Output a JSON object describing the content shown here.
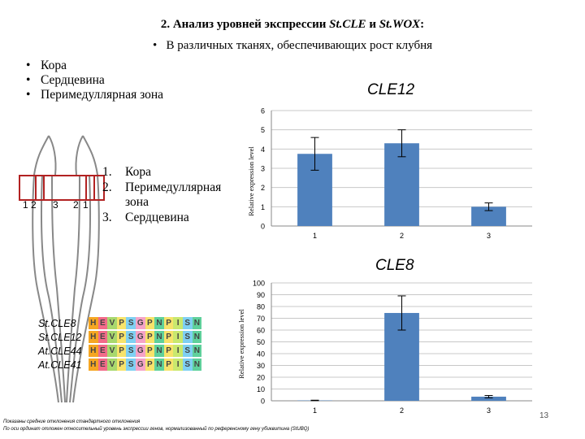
{
  "slide": {
    "title_prefix": "2.  Анализ уровней  экспрессии ",
    "title_gene1": "St.CLE",
    "title_mid": " и ",
    "title_gene2": "St.WOX",
    "title_suffix": ":",
    "subtitle": "В различных тканях, обеспечивающих рост клубня",
    "tissue_list": [
      "Кора",
      "Сердцевина",
      "Перимедуллярная зона"
    ],
    "numbered_list": [
      {
        "num": "1.",
        "text": "Кора"
      },
      {
        "num": "2.",
        "text": "Перимедуллярная"
      },
      {
        "num": "",
        "text": "зона"
      },
      {
        "num": "3.",
        "text": "Сердцевина"
      }
    ],
    "diagram_labels": [
      "1",
      "2",
      "3",
      "2",
      "1"
    ],
    "page_number": "13",
    "footnotes": [
      "Показаны средние отклонения стандартного отклонения",
      "По оси ординат отложен относительный уровень экспрессии генов, нормализованный по референсному гену убиквитина (StUBQ)"
    ]
  },
  "sequences": {
    "names": [
      "St.CLE8",
      "St.CLE12",
      "At.CLE44",
      "At.CLE41"
    ],
    "residues": [
      "H",
      "E",
      "V",
      "P",
      "S",
      "G",
      "P",
      "N",
      "P",
      "I",
      "S",
      "N"
    ],
    "rows": [
      [
        "H",
        "E",
        "V",
        "P",
        "S",
        "G",
        "P",
        "N",
        "P",
        "I",
        "S",
        "N"
      ],
      [
        "H",
        "E",
        "V",
        "P",
        "S",
        "G",
        "P",
        "N",
        "P",
        "I",
        "S",
        "N"
      ],
      [
        "H",
        "E",
        "V",
        "P",
        "S",
        "G",
        "P",
        "N",
        "P",
        "I",
        "S",
        "N"
      ],
      [
        "H",
        "E",
        "V",
        "P",
        "S",
        "G",
        "P",
        "N",
        "P",
        "I",
        "S",
        "N"
      ]
    ],
    "colors": [
      "#f5a623",
      "#f26b8a",
      "#a8d86e",
      "#f7e36b",
      "#7fd0f2",
      "#f5a3c7",
      "#f7e36b",
      "#5fd09b",
      "#f7e36b",
      "#c9e86e",
      "#7fd0f2",
      "#5fd09b"
    ]
  },
  "chart_data": [
    {
      "type": "bar",
      "title": "CLE12",
      "categories": [
        "1",
        "2",
        "3"
      ],
      "values": [
        3.75,
        4.3,
        1.0
      ],
      "errors": [
        0.85,
        0.7,
        0.2
      ],
      "ylim": [
        0,
        6
      ],
      "yticks": [
        "0",
        "1",
        "2",
        "3",
        "4",
        "5",
        "6"
      ],
      "ylabel": "Relative expression level",
      "xlabel": "",
      "bar_color": "#4f81bd",
      "grid": true
    },
    {
      "type": "bar",
      "title": "CLE8",
      "categories": [
        "1",
        "2",
        "3"
      ],
      "values": [
        0.3,
        74.5,
        3.5
      ],
      "errors": [
        0.2,
        14.5,
        1.0
      ],
      "ylim": [
        0,
        100
      ],
      "yticks": [
        "0",
        "10",
        "20",
        "30",
        "40",
        "50",
        "60",
        "70",
        "80",
        "90",
        "100"
      ],
      "ylabel": "Relative expression level",
      "xlabel": "",
      "bar_color": "#4f81bd",
      "grid": true
    }
  ]
}
